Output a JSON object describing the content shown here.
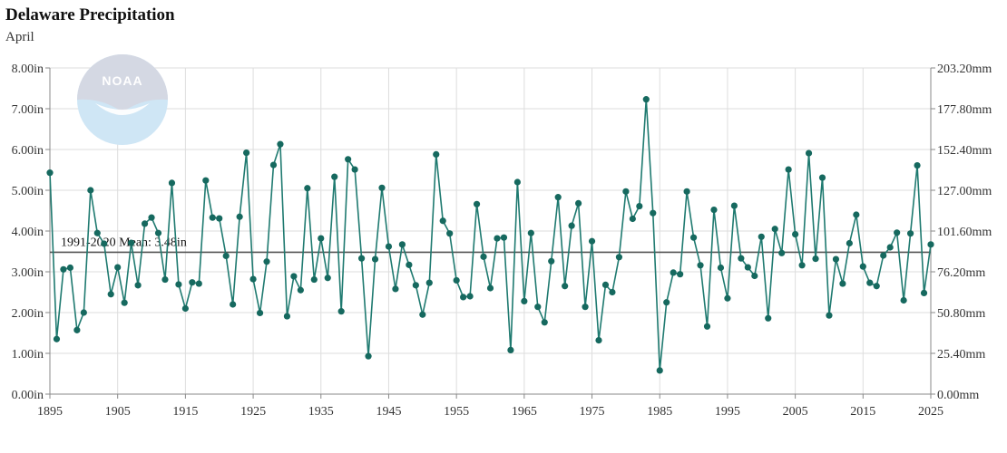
{
  "header": {
    "title": "Delaware Precipitation",
    "subtitle": "April"
  },
  "logo": {
    "text": "NOAA"
  },
  "colors": {
    "series": "#1f7a70",
    "marker": "#16695f",
    "mean": "#555555",
    "grid": "#dddddd",
    "logo_light": "#cfe6f5",
    "logo_dark": "#d4d8e3"
  },
  "chart_data": {
    "type": "line",
    "title": "Delaware Precipitation",
    "subtitle": "April",
    "xlabel": "",
    "ylabel": "",
    "xlim": [
      1895,
      2025
    ],
    "ylim": [
      0,
      8
    ],
    "grid": true,
    "x_ticks": [
      "1895",
      "1905",
      "1915",
      "1925",
      "1935",
      "1945",
      "1955",
      "1965",
      "1975",
      "1985",
      "1995",
      "2005",
      "2015",
      "2025"
    ],
    "y_ticks_left": [
      "0.00in",
      "1.00in",
      "2.00in",
      "3.00in",
      "4.00in",
      "5.00in",
      "6.00in",
      "7.00in",
      "8.00in"
    ],
    "y_ticks_right": [
      "0.00mm",
      "25.40mm",
      "50.80mm",
      "76.20mm",
      "101.60mm",
      "127.00mm",
      "152.40mm",
      "177.80mm",
      "203.20mm"
    ],
    "mean": {
      "label": "1991-2020 Mean: 3.48in",
      "value": 3.48
    },
    "series": [
      {
        "x": [
          1895,
          1896,
          1897,
          1898,
          1899,
          1900,
          1901,
          1902,
          1903,
          1904,
          1905,
          1906,
          1907,
          1908,
          1909,
          1910,
          1911,
          1912,
          1913,
          1914,
          1915,
          1916,
          1917,
          1918,
          1919,
          1920,
          1921,
          1922,
          1923,
          1924,
          1925,
          1926,
          1927,
          1928,
          1929,
          1930,
          1931,
          1932,
          1933,
          1934,
          1935,
          1936,
          1937,
          1938,
          1939,
          1940,
          1941,
          1942,
          1943,
          1944,
          1945,
          1946,
          1947,
          1948,
          1949,
          1950,
          1951,
          1952,
          1953,
          1954,
          1955,
          1956,
          1957,
          1958,
          1959,
          1960,
          1961,
          1962,
          1963,
          1964,
          1965,
          1966,
          1967,
          1968,
          1969,
          1970,
          1971,
          1972,
          1973,
          1974,
          1975,
          1976,
          1977,
          1978,
          1979,
          1980,
          1981,
          1982,
          1983,
          1984,
          1985,
          1986,
          1987,
          1988,
          1989,
          1990,
          1991,
          1992,
          1993,
          1994,
          1995,
          1996,
          1997,
          1998,
          1999,
          2000,
          2001,
          2002,
          2003,
          2004,
          2005,
          2006,
          2007,
          2008,
          2009,
          2010,
          2011,
          2012,
          2013,
          2014,
          2015,
          2016,
          2017,
          2018,
          2019,
          2020,
          2021,
          2022,
          2023,
          2024,
          2025
        ],
        "values": [
          5.43,
          1.35,
          3.06,
          3.1,
          1.57,
          2.0,
          5.0,
          3.95,
          3.69,
          2.45,
          3.11,
          2.24,
          3.71,
          2.67,
          4.18,
          4.33,
          3.95,
          2.81,
          5.18,
          2.69,
          2.1,
          2.74,
          2.71,
          5.24,
          4.33,
          4.31,
          3.39,
          2.2,
          4.35,
          5.92,
          2.82,
          1.99,
          3.25,
          5.62,
          6.13,
          1.91,
          2.89,
          2.55,
          5.05,
          2.81,
          3.82,
          2.85,
          5.33,
          2.03,
          5.76,
          5.51,
          3.33,
          0.93,
          3.31,
          5.06,
          3.62,
          2.58,
          3.67,
          3.17,
          2.67,
          1.95,
          2.73,
          5.88,
          4.25,
          3.94,
          2.79,
          2.38,
          2.4,
          4.66,
          3.37,
          2.6,
          3.82,
          3.84,
          1.08,
          5.2,
          2.28,
          3.95,
          2.14,
          1.76,
          3.26,
          4.83,
          2.65,
          4.13,
          4.68,
          2.14,
          3.75,
          1.32,
          2.68,
          2.5,
          3.36,
          4.97,
          4.3,
          4.61,
          7.23,
          4.44,
          0.58,
          2.25,
          2.98,
          2.94,
          4.97,
          3.84,
          3.16,
          1.66,
          4.52,
          3.1,
          2.35,
          4.62,
          3.33,
          3.11,
          2.9,
          3.86,
          1.86,
          4.05,
          3.46,
          5.51,
          3.92,
          3.16,
          5.91,
          3.32,
          5.31,
          1.93,
          3.31,
          2.71,
          3.7,
          4.4,
          3.13,
          2.73,
          2.65,
          3.4,
          3.6,
          3.96,
          2.3,
          3.94,
          5.61,
          2.48,
          3.67
        ]
      }
    ]
  }
}
